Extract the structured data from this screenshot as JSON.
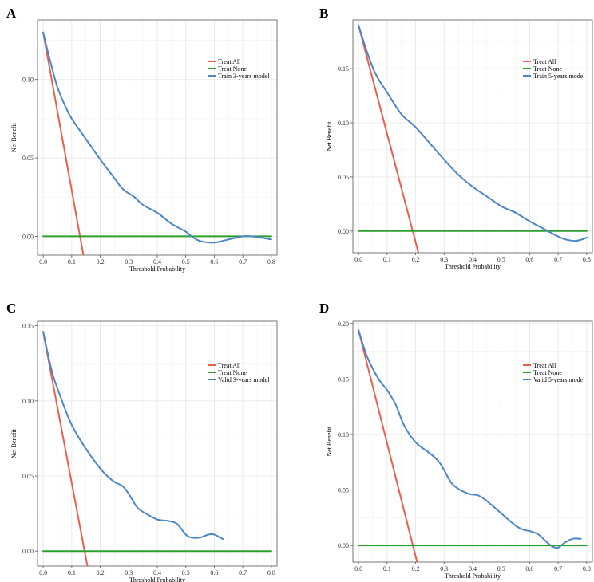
{
  "colors": {
    "treat_all": "#E8604C",
    "treat_none": "#2CA02C",
    "model": "#4A86C8"
  },
  "chart_data": [
    {
      "panel": "A",
      "type": "line",
      "title": "",
      "xlabel": "Threshold Probability",
      "ylabel": "Net Benefit",
      "xlim": [
        -0.02,
        0.82
      ],
      "ylim": [
        -0.012,
        0.138
      ],
      "xticks": [
        0.0,
        0.1,
        0.2,
        0.3,
        0.4,
        0.5,
        0.6,
        0.7,
        0.8
      ],
      "xtick_labels": [
        "0.0",
        "0.1",
        "0.2",
        "0.3",
        "0.4",
        "0.5",
        "0.6",
        "0.7",
        "0.8"
      ],
      "yticks": [
        0.0,
        0.05,
        0.1
      ],
      "ytick_labels": [
        "0.00",
        "0.05",
        "0.10"
      ],
      "legend_position": "top-right",
      "series": [
        {
          "name": "Treat All",
          "key": "treat_all",
          "x": [
            0.0,
            0.141
          ],
          "y": [
            0.13,
            -0.012
          ]
        },
        {
          "name": "Treat None",
          "key": "treat_none",
          "x": [
            0.0,
            0.8
          ],
          "y": [
            0.0,
            0.0
          ]
        },
        {
          "name": "Train 3-years model",
          "key": "model",
          "x": [
            0.0,
            0.02,
            0.05,
            0.08,
            0.1,
            0.15,
            0.2,
            0.25,
            0.28,
            0.32,
            0.35,
            0.4,
            0.45,
            0.5,
            0.52,
            0.55,
            0.6,
            0.65,
            0.7,
            0.73,
            0.77,
            0.8
          ],
          "y": [
            0.13,
            0.115,
            0.095,
            0.082,
            0.075,
            0.062,
            0.049,
            0.037,
            0.03,
            0.025,
            0.02,
            0.015,
            0.008,
            0.003,
            0.0,
            -0.003,
            -0.004,
            -0.002,
            0.0,
            0.0,
            -0.001,
            -0.002
          ]
        }
      ]
    },
    {
      "panel": "B",
      "type": "line",
      "title": "",
      "xlabel": "Threshold Probability",
      "ylabel": "Net Benefit",
      "xlim": [
        -0.02,
        0.82
      ],
      "ylim": [
        -0.02,
        0.195
      ],
      "xticks": [
        0.0,
        0.1,
        0.2,
        0.3,
        0.4,
        0.5,
        0.6,
        0.7,
        0.8
      ],
      "xtick_labels": [
        "0.0",
        "0.1",
        "0.2",
        "0.3",
        "0.4",
        "0.5",
        "0.6",
        "0.7",
        "0.8"
      ],
      "yticks": [
        0.0,
        0.05,
        0.1,
        0.15
      ],
      "ytick_labels": [
        "0.00",
        "0.05",
        "0.10",
        "0.15"
      ],
      "legend_position": "top-right",
      "series": [
        {
          "name": "Treat All",
          "key": "treat_all",
          "x": [
            0.0,
            0.21
          ],
          "y": [
            0.19,
            -0.02
          ]
        },
        {
          "name": "Treat None",
          "key": "treat_none",
          "x": [
            0.0,
            0.8
          ],
          "y": [
            0.0,
            0.0
          ]
        },
        {
          "name": "Train 5-years model",
          "key": "model",
          "x": [
            0.0,
            0.03,
            0.06,
            0.1,
            0.15,
            0.2,
            0.25,
            0.3,
            0.35,
            0.4,
            0.45,
            0.5,
            0.55,
            0.6,
            0.65,
            0.7,
            0.73,
            0.76,
            0.78,
            0.8
          ],
          "y": [
            0.19,
            0.165,
            0.145,
            0.128,
            0.108,
            0.096,
            0.081,
            0.066,
            0.052,
            0.041,
            0.032,
            0.023,
            0.017,
            0.009,
            0.002,
            -0.005,
            -0.008,
            -0.009,
            -0.008,
            -0.006
          ]
        }
      ]
    },
    {
      "panel": "C",
      "type": "line",
      "title": "",
      "xlabel": "Threshold Probability",
      "ylabel": "Net Benefit",
      "xlim": [
        -0.02,
        0.82
      ],
      "ylim": [
        -0.01,
        0.153
      ],
      "xticks": [
        0.0,
        0.1,
        0.2,
        0.3,
        0.4,
        0.5,
        0.6,
        0.7,
        0.8
      ],
      "xtick_labels": [
        "0.0",
        "0.1",
        "0.2",
        "0.3",
        "0.4",
        "0.5",
        "0.6",
        "0.7",
        "0.8"
      ],
      "yticks": [
        0.0,
        0.05,
        0.1,
        0.15
      ],
      "ytick_labels": [
        "0.00",
        "0.05",
        "0.10",
        "0.15"
      ],
      "legend_position": "top-right",
      "series": [
        {
          "name": "Treat All",
          "key": "treat_all",
          "x": [
            0.0,
            0.155
          ],
          "y": [
            0.146,
            -0.01
          ]
        },
        {
          "name": "Treat None",
          "key": "treat_none",
          "x": [
            0.0,
            0.8
          ],
          "y": [
            0.0,
            0.0
          ]
        },
        {
          "name": "Valid 3-years model",
          "key": "model",
          "x": [
            0.0,
            0.03,
            0.06,
            0.1,
            0.15,
            0.2,
            0.23,
            0.25,
            0.28,
            0.3,
            0.33,
            0.36,
            0.4,
            0.44,
            0.47,
            0.5,
            0.52,
            0.55,
            0.58,
            0.6,
            0.63
          ],
          "y": [
            0.146,
            0.12,
            0.103,
            0.084,
            0.068,
            0.055,
            0.049,
            0.046,
            0.043,
            0.038,
            0.029,
            0.025,
            0.021,
            0.02,
            0.018,
            0.011,
            0.009,
            0.009,
            0.011,
            0.011,
            0.008
          ]
        }
      ]
    },
    {
      "panel": "D",
      "type": "line",
      "title": "",
      "xlabel": "Threshold Probability",
      "ylabel": "Net Benefit",
      "xlim": [
        -0.02,
        0.82
      ],
      "ylim": [
        -0.015,
        0.202
      ],
      "xticks": [
        0.0,
        0.1,
        0.2,
        0.3,
        0.4,
        0.5,
        0.6,
        0.7,
        0.8
      ],
      "xtick_labels": [
        "0.0",
        "0.1",
        "0.2",
        "0.3",
        "0.4",
        "0.5",
        "0.6",
        "0.7",
        "0.8"
      ],
      "yticks": [
        0.0,
        0.05,
        0.1,
        0.15,
        0.2
      ],
      "ytick_labels": [
        "0.00",
        "0.05",
        "0.10",
        "0.15",
        "0.20"
      ],
      "legend_position": "top-right",
      "series": [
        {
          "name": "Treat All",
          "key": "treat_all",
          "x": [
            0.0,
            0.205
          ],
          "y": [
            0.194,
            -0.015
          ]
        },
        {
          "name": "Treat None",
          "key": "treat_none",
          "x": [
            0.0,
            0.8
          ],
          "y": [
            0.0,
            0.0
          ]
        },
        {
          "name": "Valid 5-years model",
          "key": "model",
          "x": [
            0.0,
            0.03,
            0.07,
            0.1,
            0.13,
            0.16,
            0.2,
            0.25,
            0.28,
            0.3,
            0.33,
            0.38,
            0.42,
            0.45,
            0.5,
            0.55,
            0.58,
            0.6,
            0.63,
            0.66,
            0.68,
            0.7,
            0.72,
            0.75,
            0.78
          ],
          "y": [
            0.194,
            0.17,
            0.15,
            0.14,
            0.127,
            0.108,
            0.093,
            0.083,
            0.076,
            0.068,
            0.055,
            0.047,
            0.045,
            0.04,
            0.029,
            0.018,
            0.014,
            0.013,
            0.01,
            0.003,
            -0.001,
            -0.002,
            0.002,
            0.006,
            0.006
          ]
        }
      ]
    }
  ]
}
